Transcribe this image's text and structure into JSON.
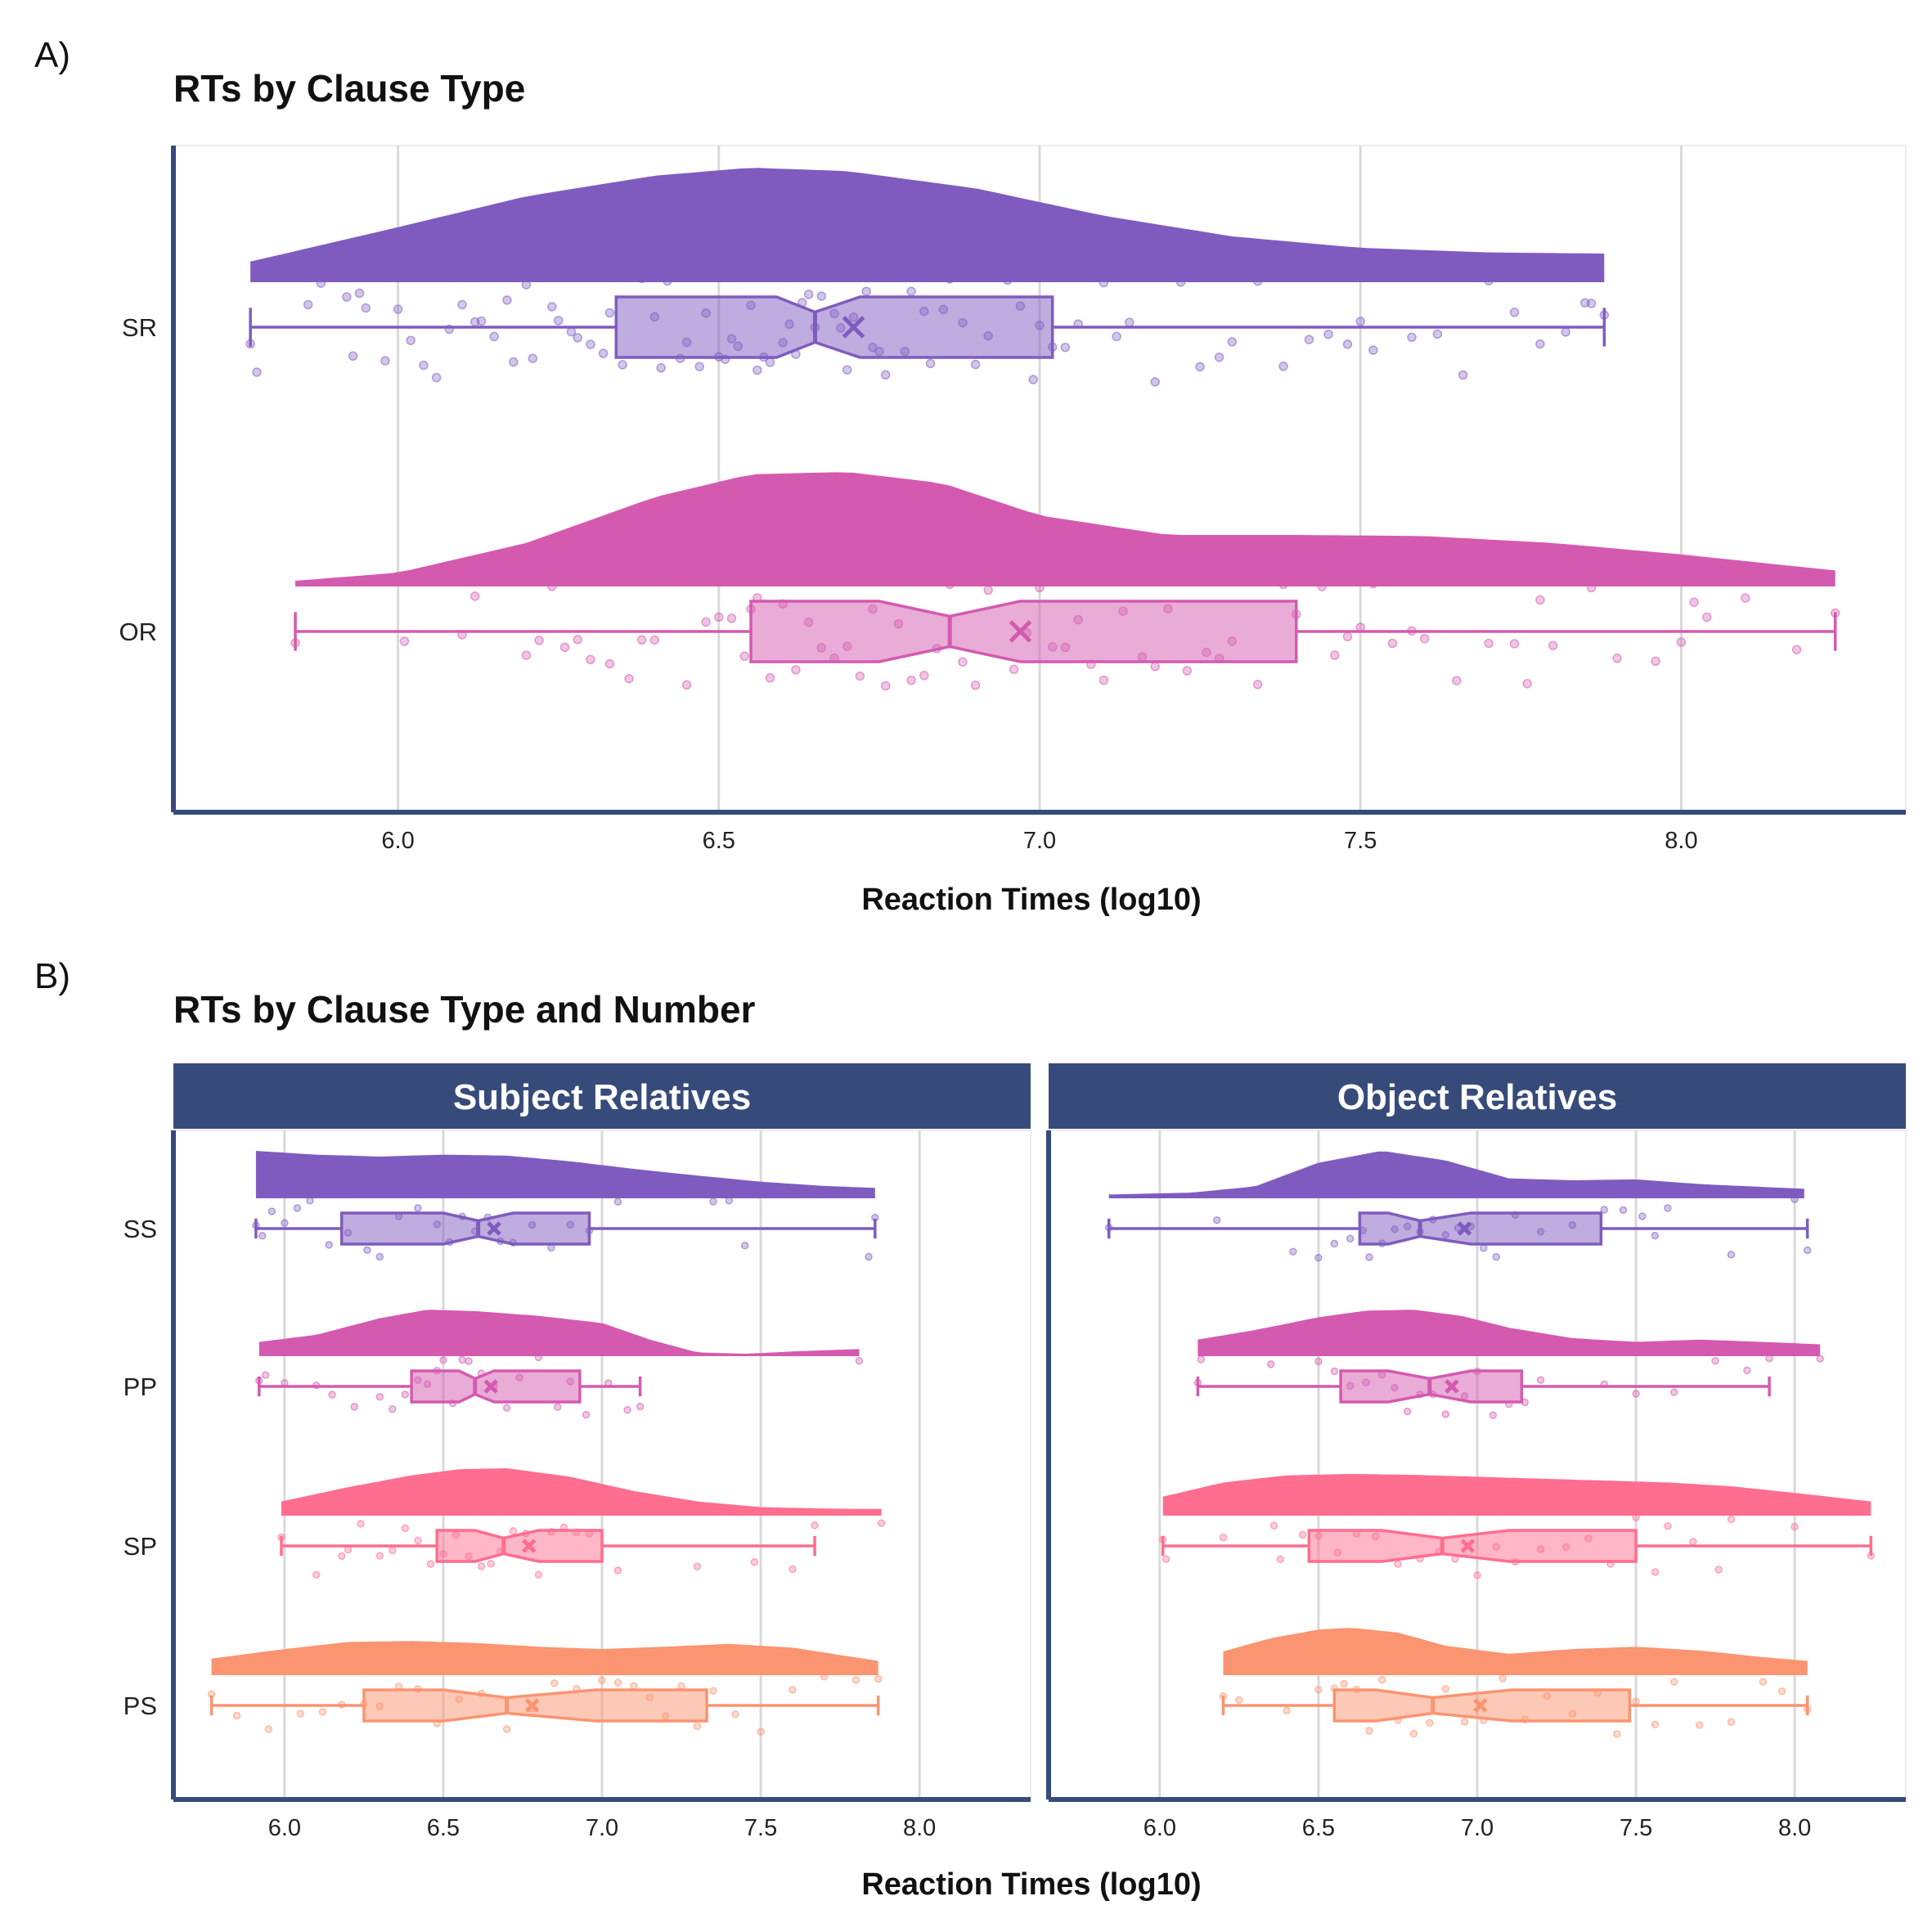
{
  "panel_labels": [
    "A)",
    "B)"
  ],
  "colors": {
    "SR": "#7f5bbf",
    "OR": "#d45aaf",
    "SS": "#7f5bbf",
    "PP": "#d45aaf",
    "SP": "#ff6d8f",
    "PS": "#fb9470",
    "axis": "#364b7a",
    "strip": "#364b7a",
    "grid": "#d9d9d9"
  },
  "chart_data": [
    {
      "type": "raincloud",
      "title": "RTs by Clause Type",
      "xlabel": "Reaction Times (log10)",
      "ylabel": "",
      "xlim": [
        5.65,
        8.35
      ],
      "xticks": [
        "6.0",
        "6.5",
        "7.0",
        "7.5",
        "8.0"
      ],
      "grid": "vertical major",
      "series": [
        {
          "name": "SR",
          "box": {
            "min": 5.77,
            "q1": 6.34,
            "median": 6.65,
            "q3": 7.02,
            "max": 7.88,
            "mean": 6.71,
            "notch_low": 6.59,
            "notch_high": 6.72
          },
          "density_x": [
            5.77,
            6.0,
            6.2,
            6.4,
            6.55,
            6.7,
            6.9,
            7.1,
            7.3,
            7.5,
            7.7,
            7.88
          ],
          "density_y": [
            0.18,
            0.48,
            0.75,
            0.93,
            1.0,
            0.97,
            0.82,
            0.58,
            0.4,
            0.3,
            0.26,
            0.25
          ],
          "points": [
            5.77,
            5.78,
            5.86,
            5.88,
            5.92,
            5.93,
            5.94,
            5.95,
            5.98,
            6.0,
            6.02,
            6.04,
            6.06,
            6.08,
            6.1,
            6.12,
            6.13,
            6.15,
            6.17,
            6.18,
            6.2,
            6.21,
            6.22,
            6.24,
            6.25,
            6.27,
            6.28,
            6.3,
            6.32,
            6.33,
            6.35,
            6.36,
            6.38,
            6.4,
            6.41,
            6.42,
            6.44,
            6.45,
            6.47,
            6.48,
            6.5,
            6.51,
            6.52,
            6.53,
            6.55,
            6.56,
            6.57,
            6.58,
            6.6,
            6.61,
            6.62,
            6.63,
            6.64,
            6.65,
            6.66,
            6.68,
            6.69,
            6.7,
            6.71,
            6.73,
            6.74,
            6.75,
            6.76,
            6.78,
            6.79,
            6.8,
            6.82,
            6.83,
            6.85,
            6.86,
            6.88,
            6.9,
            6.92,
            6.93,
            6.95,
            6.97,
            6.99,
            7.0,
            7.02,
            7.04,
            7.06,
            7.1,
            7.12,
            7.14,
            7.18,
            7.22,
            7.25,
            7.28,
            7.3,
            7.34,
            7.38,
            7.42,
            7.45,
            7.48,
            7.5,
            7.52,
            7.58,
            7.62,
            7.66,
            7.7,
            7.74,
            7.78,
            7.82,
            7.85,
            7.86,
            7.88
          ]
        },
        {
          "name": "OR",
          "box": {
            "min": 5.84,
            "q1": 6.55,
            "median": 6.86,
            "q3": 7.4,
            "max": 8.24,
            "mean": 6.97,
            "notch_low": 6.75,
            "notch_high": 6.97
          },
          "density_x": [
            5.84,
            6.0,
            6.2,
            6.4,
            6.55,
            6.7,
            6.85,
            7.0,
            7.2,
            7.4,
            7.6,
            7.8,
            8.0,
            8.24
          ],
          "density_y": [
            0.05,
            0.12,
            0.38,
            0.78,
            0.98,
            1.0,
            0.9,
            0.62,
            0.45,
            0.45,
            0.44,
            0.38,
            0.28,
            0.14
          ],
          "points": [
            5.84,
            6.01,
            6.1,
            6.12,
            6.2,
            6.22,
            6.24,
            6.26,
            6.28,
            6.3,
            6.33,
            6.36,
            6.38,
            6.4,
            6.43,
            6.45,
            6.48,
            6.5,
            6.52,
            6.54,
            6.55,
            6.56,
            6.58,
            6.6,
            6.62,
            6.64,
            6.66,
            6.68,
            6.7,
            6.72,
            6.74,
            6.76,
            6.78,
            6.8,
            6.82,
            6.84,
            6.86,
            6.88,
            6.9,
            6.92,
            6.94,
            6.96,
            6.98,
            7.0,
            7.02,
            7.04,
            7.06,
            7.08,
            7.1,
            7.13,
            7.16,
            7.18,
            7.2,
            7.23,
            7.26,
            7.28,
            7.3,
            7.34,
            7.38,
            7.4,
            7.44,
            7.46,
            7.48,
            7.5,
            7.52,
            7.55,
            7.58,
            7.6,
            7.65,
            7.7,
            7.74,
            7.76,
            7.78,
            7.8,
            7.86,
            7.9,
            7.94,
            7.96,
            8.0,
            8.02,
            8.04,
            8.1,
            8.18,
            8.24
          ]
        }
      ]
    },
    {
      "type": "raincloud",
      "title": "RTs by Clause Type and Number",
      "xlabel": "Reaction Times (log10)",
      "ylabel": "",
      "xlim": [
        5.65,
        8.35
      ],
      "xticks": [
        "6.0",
        "6.5",
        "7.0",
        "7.5",
        "8.0"
      ],
      "grid": "vertical major",
      "facets": [
        {
          "name": "Subject Relatives",
          "series": [
            {
              "name": "SS",
              "box": {
                "min": 5.91,
                "q1": 6.18,
                "median": 6.61,
                "q3": 6.96,
                "max": 7.86,
                "mean": 6.66,
                "notch_low": 6.5,
                "notch_high": 6.72
              },
              "density_x": [
                5.91,
                6.1,
                6.3,
                6.5,
                6.7,
                6.9,
                7.1,
                7.3,
                7.5,
                7.7,
                7.86
              ],
              "density_y": [
                1.0,
                0.92,
                0.88,
                0.92,
                0.9,
                0.78,
                0.62,
                0.48,
                0.35,
                0.26,
                0.22
              ],
              "points": [
                5.91,
                5.93,
                5.96,
                6.0,
                6.04,
                6.08,
                6.14,
                6.2,
                6.26,
                6.3,
                6.36,
                6.42,
                6.48,
                6.52,
                6.56,
                6.6,
                6.64,
                6.68,
                6.72,
                6.78,
                6.84,
                6.9,
                6.96,
                7.05,
                7.35,
                7.4,
                7.45,
                7.84,
                7.86
              ]
            },
            {
              "name": "PP",
              "box": {
                "min": 5.92,
                "q1": 6.4,
                "median": 6.6,
                "q3": 6.93,
                "max": 7.12,
                "mean": 6.65,
                "notch_low": 6.55,
                "notch_high": 6.66
              },
              "density_x": [
                5.92,
                6.1,
                6.3,
                6.45,
                6.6,
                6.8,
                7.0,
                7.15,
                7.3,
                7.45,
                7.6,
                7.81
              ],
              "density_y": [
                0.3,
                0.45,
                0.8,
                0.98,
                0.95,
                0.85,
                0.7,
                0.35,
                0.08,
                0.05,
                0.1,
                0.15
              ],
              "points": [
                5.92,
                5.94,
                6.0,
                6.1,
                6.15,
                6.22,
                6.3,
                6.34,
                6.38,
                6.42,
                6.45,
                6.48,
                6.5,
                6.53,
                6.56,
                6.58,
                6.62,
                6.66,
                6.7,
                6.74,
                6.8,
                6.86,
                6.9,
                6.95,
                7.02,
                7.08,
                7.12,
                7.81
              ]
            },
            {
              "name": "SP",
              "box": {
                "min": 5.99,
                "q1": 6.48,
                "median": 6.69,
                "q3": 7.0,
                "max": 7.67,
                "mean": 6.77,
                "notch_low": 6.6,
                "notch_high": 6.8
              },
              "density_x": [
                5.99,
                6.2,
                6.4,
                6.55,
                6.7,
                6.9,
                7.1,
                7.3,
                7.5,
                7.7,
                7.88
              ],
              "density_y": [
                0.3,
                0.6,
                0.85,
                0.98,
                1.0,
                0.82,
                0.52,
                0.3,
                0.18,
                0.15,
                0.14
              ],
              "points": [
                5.99,
                6.1,
                6.18,
                6.2,
                6.24,
                6.3,
                6.34,
                6.38,
                6.42,
                6.46,
                6.5,
                6.54,
                6.58,
                6.62,
                6.65,
                6.68,
                6.72,
                6.76,
                6.8,
                6.84,
                6.88,
                6.92,
                6.96,
                7.05,
                7.3,
                7.48,
                7.6,
                7.67,
                7.88
              ]
            },
            {
              "name": "PS",
              "box": {
                "min": 5.77,
                "q1": 6.25,
                "median": 6.7,
                "q3": 7.33,
                "max": 7.87,
                "mean": 6.78,
                "notch_low": 6.5,
                "notch_high": 6.98
              },
              "density_x": [
                5.77,
                6.0,
                6.2,
                6.4,
                6.6,
                6.8,
                7.0,
                7.2,
                7.4,
                7.6,
                7.87
              ],
              "density_y": [
                0.35,
                0.55,
                0.7,
                0.72,
                0.68,
                0.6,
                0.55,
                0.6,
                0.66,
                0.58,
                0.3
              ],
              "points": [
                5.77,
                5.85,
                5.95,
                6.05,
                6.12,
                6.18,
                6.25,
                6.3,
                6.36,
                6.42,
                6.48,
                6.55,
                6.62,
                6.7,
                6.78,
                6.85,
                6.92,
                7.0,
                7.05,
                7.1,
                7.15,
                7.2,
                7.25,
                7.3,
                7.35,
                7.42,
                7.5,
                7.6,
                7.7,
                7.8,
                7.87
              ]
            }
          ]
        },
        {
          "name": "Object Relatives",
          "series": [
            {
              "name": "SS",
              "box": {
                "min": 5.84,
                "q1": 6.63,
                "median": 6.82,
                "q3": 7.39,
                "max": 8.04,
                "mean": 6.96,
                "notch_low": 6.72,
                "notch_high": 6.98
              },
              "density_x": [
                5.84,
                6.1,
                6.3,
                6.5,
                6.7,
                6.9,
                7.1,
                7.3,
                7.5,
                7.7,
                8.03
              ],
              "density_y": [
                0.08,
                0.12,
                0.25,
                0.75,
                1.0,
                0.8,
                0.42,
                0.38,
                0.4,
                0.3,
                0.2
              ],
              "points": [
                5.84,
                6.18,
                6.42,
                6.5,
                6.55,
                6.6,
                6.64,
                6.66,
                6.7,
                6.74,
                6.78,
                6.82,
                6.86,
                6.9,
                6.94,
                6.98,
                7.02,
                7.06,
                7.12,
                7.2,
                7.3,
                7.4,
                7.46,
                7.52,
                7.56,
                7.6,
                7.8,
                8.0,
                8.04
              ]
            },
            {
              "name": "PP",
              "box": {
                "min": 6.12,
                "q1": 6.57,
                "median": 6.85,
                "q3": 7.14,
                "max": 7.92,
                "mean": 6.92,
                "notch_low": 6.72,
                "notch_high": 6.98
              },
              "density_x": [
                6.12,
                6.3,
                6.5,
                6.65,
                6.8,
                6.95,
                7.1,
                7.3,
                7.5,
                7.7,
                7.9,
                8.08
              ],
              "density_y": [
                0.35,
                0.55,
                0.82,
                0.96,
                0.98,
                0.85,
                0.6,
                0.38,
                0.3,
                0.35,
                0.3,
                0.25
              ],
              "points": [
                6.12,
                6.13,
                6.35,
                6.5,
                6.55,
                6.6,
                6.65,
                6.7,
                6.74,
                6.78,
                6.82,
                6.86,
                6.9,
                6.96,
                7.0,
                7.05,
                7.1,
                7.15,
                7.2,
                7.4,
                7.5,
                7.62,
                7.75,
                7.85,
                7.92,
                8.08
              ]
            },
            {
              "name": "SP",
              "box": {
                "min": 6.01,
                "q1": 6.47,
                "median": 6.89,
                "q3": 7.5,
                "max": 8.24,
                "mean": 6.97,
                "notch_low": 6.7,
                "notch_high": 7.1
              },
              "density_x": [
                6.01,
                6.2,
                6.4,
                6.6,
                6.8,
                7.0,
                7.2,
                7.4,
                7.6,
                7.8,
                8.0,
                8.24
              ],
              "density_y": [
                0.4,
                0.7,
                0.85,
                0.88,
                0.86,
                0.82,
                0.78,
                0.74,
                0.7,
                0.62,
                0.48,
                0.3
              ],
              "points": [
                6.01,
                6.02,
                6.2,
                6.36,
                6.38,
                6.45,
                6.5,
                6.56,
                6.62,
                6.68,
                6.75,
                6.82,
                6.88,
                6.93,
                7.0,
                7.06,
                7.12,
                7.2,
                7.28,
                7.35,
                7.42,
                7.5,
                7.56,
                7.6,
                7.68,
                7.76,
                7.8,
                8.0,
                8.24
              ]
            },
            {
              "name": "PS",
              "box": {
                "min": 6.2,
                "q1": 6.55,
                "median": 6.86,
                "q3": 7.48,
                "max": 8.04,
                "mean": 7.01,
                "notch_low": 6.68,
                "notch_high": 7.11
              },
              "density_x": [
                6.2,
                6.35,
                6.5,
                6.6,
                6.75,
                6.9,
                7.1,
                7.3,
                7.5,
                7.7,
                7.9,
                8.04
              ],
              "density_y": [
                0.5,
                0.78,
                0.96,
                1.0,
                0.9,
                0.62,
                0.45,
                0.55,
                0.6,
                0.52,
                0.38,
                0.3
              ],
              "points": [
                6.2,
                6.25,
                6.4,
                6.5,
                6.55,
                6.58,
                6.62,
                6.66,
                6.7,
                6.75,
                6.8,
                6.85,
                6.9,
                6.96,
                7.02,
                7.08,
                7.15,
                7.22,
                7.3,
                7.38,
                7.44,
                7.5,
                7.56,
                7.62,
                7.7,
                7.8,
                7.9,
                7.96,
                8.04
              ]
            }
          ]
        }
      ]
    }
  ]
}
